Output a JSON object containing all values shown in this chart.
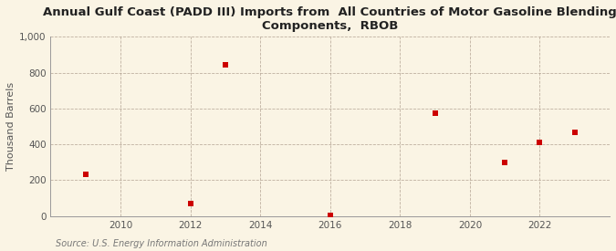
{
  "title": "Annual Gulf Coast (PADD III) Imports from  All Countries of Motor Gasoline Blending\nComponents,  RBOB",
  "ylabel": "Thousand Barrels",
  "source": "Source: U.S. Energy Information Administration",
  "background_color": "#faf4e4",
  "plot_background_color": "#faf4e4",
  "marker_color": "#cc0000",
  "marker_style": "s",
  "marker_size": 4,
  "x_data": [
    2009,
    2012,
    2013,
    2016,
    2019,
    2021,
    2022,
    2023
  ],
  "y_data": [
    235,
    70,
    845,
    5,
    575,
    300,
    410,
    465
  ],
  "xlim": [
    2008.0,
    2024.0
  ],
  "ylim": [
    0,
    1000
  ],
  "xticks": [
    2010,
    2012,
    2014,
    2016,
    2018,
    2020,
    2022
  ],
  "yticks": [
    0,
    200,
    400,
    600,
    800,
    1000
  ],
  "ytick_labels": [
    "0",
    "200",
    "400",
    "600",
    "800",
    "1,000"
  ],
  "grid_color": "#b0a090",
  "grid_linestyle": "--",
  "grid_alpha": 0.8,
  "title_fontsize": 9.5,
  "axis_label_fontsize": 8,
  "tick_fontsize": 7.5,
  "source_fontsize": 7
}
